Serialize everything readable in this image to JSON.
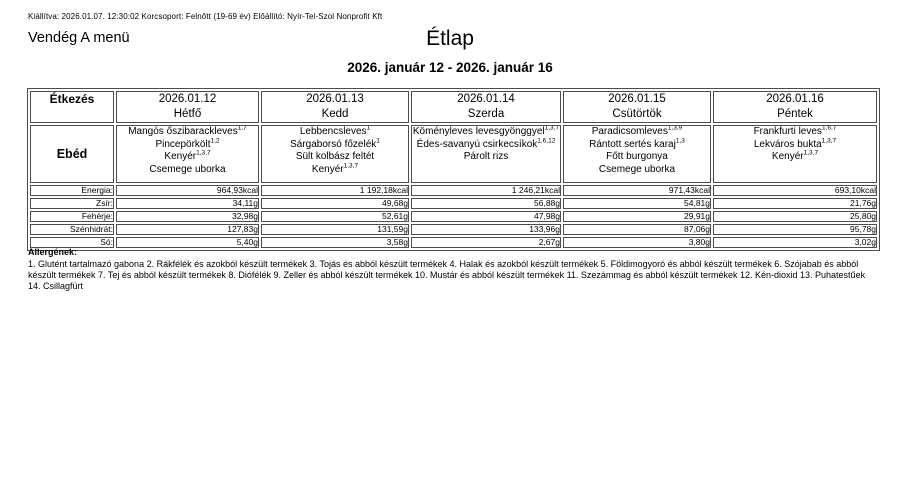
{
  "meta": {
    "issued_line": "Kiállítva: 2026.01.07. 12:30:02 Korcsoport: Felnőtt (19-69 év) Előállító: Nyír-Tel-Szol Nonprofit Kft",
    "menu_name": "Vendég A menü",
    "title": "Étlap",
    "date_range": "2026. január 12 - 2026. január 16"
  },
  "table": {
    "meal_header": "Étkezés",
    "meal_row_label": "Ebéd",
    "days": [
      {
        "date": "2026.01.12",
        "day": "Hétfő",
        "items": [
          {
            "name": "Mangós őszibarackleves",
            "allergens": "1,7"
          },
          {
            "name": "Pincepörkölt",
            "allergens": "1,2"
          },
          {
            "name": "Kenyér",
            "allergens": "1,3,7"
          },
          {
            "name": "Csemege uborka",
            "allergens": ""
          }
        ]
      },
      {
        "date": "2026.01.13",
        "day": "Kedd",
        "items": [
          {
            "name": "Lebbencsleves",
            "allergens": "1"
          },
          {
            "name": "Sárgaborsó főzelék",
            "allergens": "1"
          },
          {
            "name": "Sült kolbász feltét",
            "allergens": ""
          },
          {
            "name": "Kenyér",
            "allergens": "1,3,7"
          }
        ]
      },
      {
        "date": "2026.01.14",
        "day": "Szerda",
        "items": [
          {
            "name": "Köményleves levesgyönggyel",
            "allergens": "1,3,7"
          },
          {
            "name": "Édes-savanyú csirkecsíkok",
            "allergens": "1,6,12"
          },
          {
            "name": "Párolt rizs",
            "allergens": ""
          }
        ]
      },
      {
        "date": "2026.01.15",
        "day": "Csütörtök",
        "items": [
          {
            "name": "Paradicsomleves",
            "allergens": "1,3,9"
          },
          {
            "name": "Rántott sertés karaj",
            "allergens": "1,3"
          },
          {
            "name": "Főtt burgonya",
            "allergens": ""
          },
          {
            "name": "Csemege uborka",
            "allergens": ""
          }
        ]
      },
      {
        "date": "2026.01.16",
        "day": "Péntek",
        "items": [
          {
            "name": "Frankfurti leves",
            "allergens": "1,6,7"
          },
          {
            "name": "Lekváros bukta",
            "allergens": "1,3,7"
          },
          {
            "name": "Kenyér",
            "allergens": "1,3,7"
          }
        ]
      }
    ],
    "nutrients": [
      {
        "label": "Energia:",
        "values": [
          "964,93kcal",
          "1 192,18kcal",
          "1 246,21kcal",
          "971,43kcal",
          "693,10kcal"
        ]
      },
      {
        "label": "Zsír:",
        "values": [
          "34,11g",
          "49,68g",
          "56,88g",
          "54,81g",
          "21,76g"
        ]
      },
      {
        "label": "Fehérje:",
        "values": [
          "32,98g",
          "52,61g",
          "47,98g",
          "29,91g",
          "25,80g"
        ]
      },
      {
        "label": "Szénhidrát:",
        "values": [
          "127,83g",
          "131,59g",
          "133,96g",
          "87,06g",
          "95,78g"
        ]
      },
      {
        "label": "Só:",
        "values": [
          "5,40g",
          "3,58g",
          "2,67g",
          "3,80g",
          "3,02g"
        ]
      }
    ]
  },
  "allergens": {
    "heading": "Allergének:",
    "text": "1. Glutént tartalmazó gabona 2. Rákfélék és azokból készült termékek 3. Tojás és abból készült termékek 4. Halak és azokból készült termékek 5. Földimogyoró és abból készült termékek 6. Szójabab és abból készült termékek 7. Tej és abból készült termékek 8. Diófélék 9. Zeller és abból készült termékek 10. Mustár és abból készült termékek 11. Szezámmag és abból készült termékek 12. Kén-dioxid 13. Puhatestűek 14. Csillagfürt"
  },
  "colors": {
    "text": "#000000",
    "border": "#4d4d4d",
    "background": "#ffffff"
  }
}
